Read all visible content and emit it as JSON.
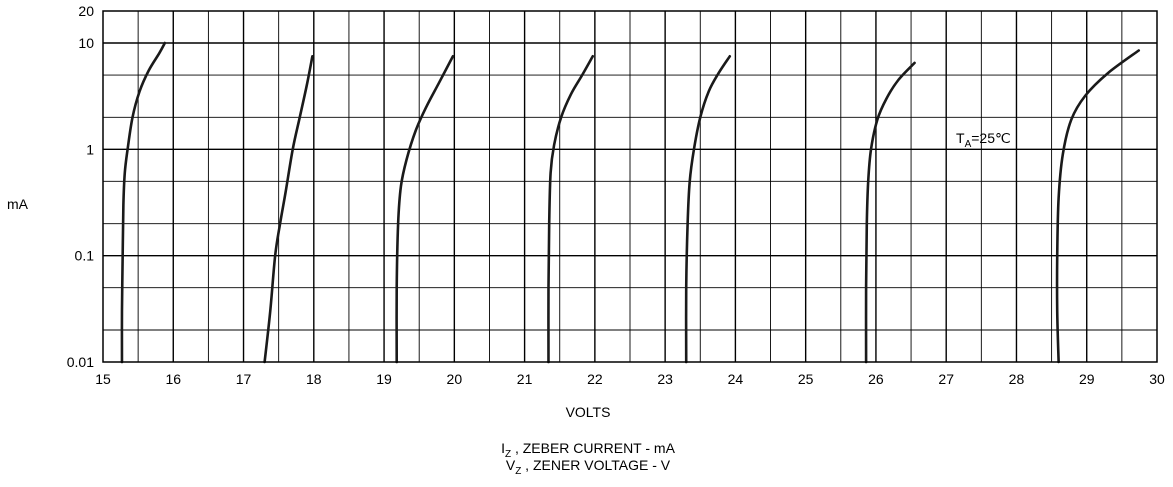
{
  "chart_data": {
    "type": "line",
    "xlabel": "VOLTS",
    "ylabel": "mA",
    "xlim": [
      15,
      30
    ],
    "ylim": [
      0.01,
      20
    ],
    "yscale": "log",
    "grid": true,
    "x_ticks": [
      "15",
      "16",
      "17",
      "18",
      "19",
      "20",
      "21",
      "22",
      "23",
      "24",
      "25",
      "26",
      "27",
      "28",
      "29",
      "30"
    ],
    "y_ticks": [
      {
        "value": 20,
        "label": "20"
      },
      {
        "value": 10,
        "label": "10"
      },
      {
        "value": 1,
        "label": "1"
      },
      {
        "value": 0.1,
        "label": "0.1"
      },
      {
        "value": 0.01,
        "label": "0.01"
      }
    ],
    "annotation": {
      "main": "T",
      "sub": "A",
      "tail": "=25℃"
    },
    "caption": {
      "line1": {
        "main": "I",
        "sub": "Z",
        "tail": " , ZEBER CURRENT - mA"
      },
      "line2": {
        "main": "V",
        "sub": "Z",
        "tail": " , ZENER VOLTAGE  - V"
      }
    },
    "series": [
      {
        "x": [
          15.27,
          15.27,
          15.28,
          15.29,
          15.31,
          15.35,
          15.42,
          15.52,
          15.65,
          15.8,
          15.88
        ],
        "y": [
          0.01,
          0.03,
          0.1,
          0.3,
          0.6,
          1.0,
          2.0,
          3.5,
          5.5,
          8.0,
          10.0
        ]
      },
      {
        "x": [
          17.3,
          17.38,
          17.45,
          17.52,
          17.6,
          17.7,
          17.8,
          17.9,
          17.98
        ],
        "y": [
          0.01,
          0.03,
          0.1,
          0.2,
          0.4,
          1.0,
          2.0,
          4.0,
          7.5
        ]
      },
      {
        "x": [
          19.18,
          19.18,
          19.2,
          19.24,
          19.32,
          19.45,
          19.6,
          19.78,
          19.98
        ],
        "y": [
          0.01,
          0.05,
          0.2,
          0.45,
          0.8,
          1.5,
          2.5,
          4.2,
          7.5
        ]
      },
      {
        "x": [
          21.34,
          21.34,
          21.35,
          21.37,
          21.42,
          21.52,
          21.66,
          21.82,
          21.97
        ],
        "y": [
          0.01,
          0.05,
          0.2,
          0.6,
          1.1,
          2.0,
          3.3,
          5.0,
          7.5
        ]
      },
      {
        "x": [
          23.3,
          23.3,
          23.32,
          23.35,
          23.41,
          23.5,
          23.62,
          23.76,
          23.92
        ],
        "y": [
          0.01,
          0.05,
          0.2,
          0.5,
          1.0,
          2.0,
          3.5,
          5.2,
          7.5
        ]
      },
      {
        "x": [
          25.86,
          25.86,
          25.87,
          25.89,
          25.93,
          26.02,
          26.15,
          26.32,
          26.55
        ],
        "y": [
          0.01,
          0.05,
          0.2,
          0.5,
          1.0,
          1.9,
          3.0,
          4.5,
          6.5
        ]
      },
      {
        "x": [
          28.6,
          28.58,
          28.58,
          28.6,
          28.66,
          28.78,
          28.98,
          29.3,
          29.74
        ],
        "y": [
          0.01,
          0.03,
          0.1,
          0.35,
          0.9,
          1.9,
          3.2,
          5.2,
          8.5
        ]
      }
    ]
  }
}
